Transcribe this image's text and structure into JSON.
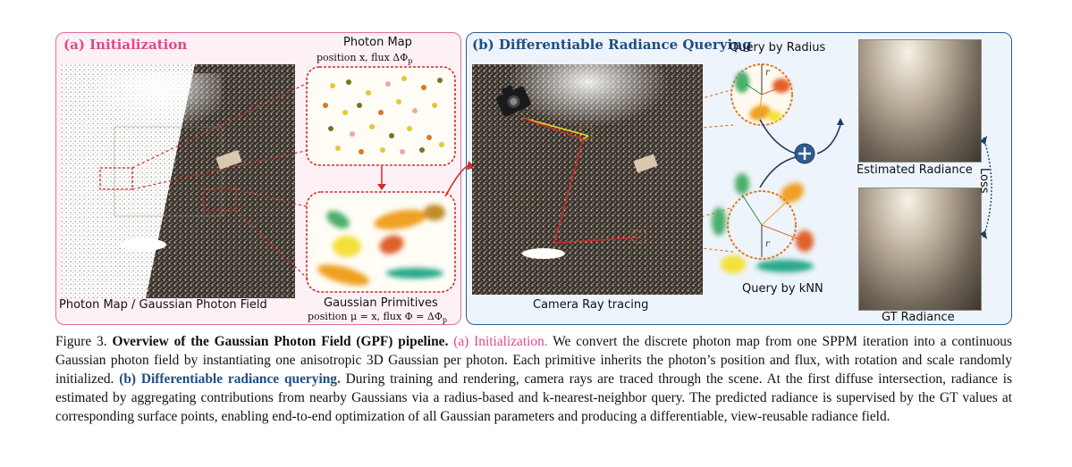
{
  "panel_a": {
    "title": "(a) Initialization",
    "photon_map_title": "Photon Map",
    "photon_map_sub": "position x, flux ΔΦ",
    "photon_map_sub_subscript": "p",
    "primitives_title": "Gaussian Primitives",
    "primitives_sub": "position μ = x, flux Φ = ΔΦ",
    "primitives_sub_subscript": "p",
    "scene_label": "Photon Map / Gaussian Photon Field"
  },
  "panel_b": {
    "title": "(b) Differentiable Radiance Querying",
    "query_radius": "Query by Radius",
    "query_knn": "Query by kNN",
    "camera_label": "Camera Ray tracing",
    "estimated_label": "Estimated Radiance",
    "gt_label": "GT Radiance",
    "loss_label": "Loss",
    "r_label": "r"
  },
  "colors": {
    "pink": "#e0488a",
    "blue": "#1f4e84",
    "orange_dashed": "#e0782a",
    "red_dashed": "#d42a2a"
  },
  "caption": {
    "figure": "Figure 3.",
    "heading": "Overview of the Gaussian Photon Field (GPF) pipeline.",
    "part_a_label": "(a) Initialization.",
    "part_a_text": "We convert the discrete photon map from one SPPM iteration into a continuous Gaussian photon field by instantiating one anisotropic 3D Gaussian per photon. Each primitive inherits the photon’s position and flux, with rotation and scale randomly initialized.",
    "part_b_label": "(b) Differentiable radiance querying.",
    "part_b_text": "During training and rendering, camera rays are traced through the scene. At the first diffuse intersection, radiance is estimated by aggregating contributions from nearby Gaussians via a radius-based and k-nearest-neighbor query. The predicted radiance is supervised by the GT values at corresponding surface points, enabling end-to-end optimization of all Gaussian parameters and producing a differentiable, view-reusable radiance field."
  }
}
